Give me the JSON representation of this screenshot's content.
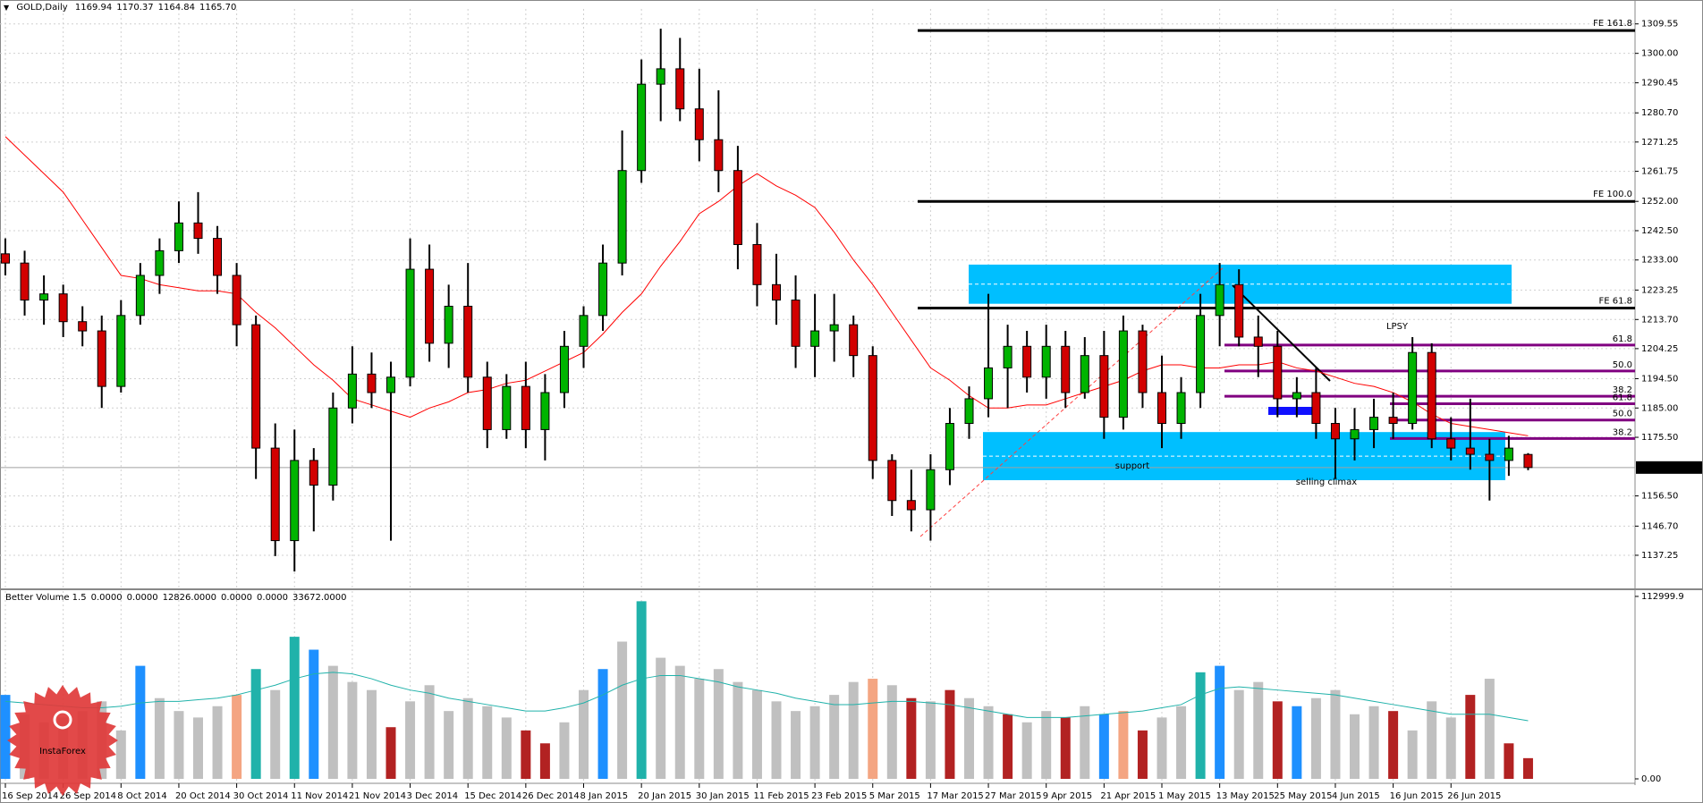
{
  "chart_data": [
    {
      "type": "candlestick",
      "title": "GOLD,Daily",
      "readout": [
        1169.94,
        1170.37,
        1164.84,
        {
          "value": 1165.7,
          "label": "1165.70"
        }
      ],
      "categories": [
        "16 Sep 2014",
        null,
        null,
        "26 Sep 2014",
        null,
        null,
        "8 Oct 2014",
        null,
        null,
        "20 Oct 2014",
        null,
        null,
        "30 Oct 2014",
        null,
        null,
        "11 Nov 2014",
        null,
        null,
        "21 Nov 2014",
        null,
        null,
        "3 Dec 2014",
        null,
        null,
        "15 Dec 2014",
        null,
        null,
        "26 Dec 2014",
        null,
        null,
        "8 Jan 2015",
        null,
        null,
        "20 Jan 2015",
        null,
        null,
        "30 Jan 2015",
        null,
        null,
        "11 Feb 2015",
        null,
        null,
        "23 Feb 2015",
        null,
        null,
        "5 Mar 2015",
        null,
        null,
        "17 Mar 2015",
        null,
        null,
        "27 Mar 2015",
        null,
        null,
        "9 Apr 2015",
        null,
        null,
        "21 Apr 2015",
        null,
        null,
        "1 May 2015",
        null,
        null,
        "13 May 2015",
        null,
        null,
        "25 May 2015",
        null,
        null,
        "4 Jun 2015",
        null,
        null,
        "16 Jun 2015",
        null,
        null,
        "26 Jun 2015",
        null,
        null,
        null,
        null
      ],
      "open": [
        1235,
        1232,
        1220,
        1222,
        1213,
        1210,
        1192,
        1215,
        1228,
        1236,
        1245,
        1240,
        1228,
        1212,
        1172,
        1142,
        1168,
        1160,
        1185,
        1196,
        1190,
        1195,
        1230,
        1206,
        1218,
        1195,
        1178,
        1192,
        1178,
        1190,
        1205,
        1215,
        1232,
        1262,
        1290,
        1295,
        1282,
        1272,
        1262,
        1238,
        1225,
        1220,
        1205,
        1210,
        1212,
        1202,
        1168,
        1155,
        1152,
        1165,
        1180,
        1188,
        1198,
        1205,
        1195,
        1205,
        1190,
        1202,
        1182,
        1210,
        1190,
        1180,
        1190,
        1215,
        1225,
        1208,
        1205,
        1188,
        1190,
        1180,
        1175,
        1178,
        1182,
        1180,
        1203,
        1175,
        1172,
        1170,
        1168,
        1169.94
      ],
      "high": [
        1240,
        1236,
        1228,
        1225,
        1218,
        1215,
        1220,
        1232,
        1240,
        1252,
        1255,
        1244,
        1232,
        1215,
        1180,
        1178,
        1172,
        1190,
        1205,
        1203,
        1200,
        1240,
        1238,
        1225,
        1232,
        1200,
        1196,
        1200,
        1196,
        1210,
        1218,
        1238,
        1275,
        1298,
        1308,
        1305,
        1295,
        1288,
        1270,
        1245,
        1235,
        1228,
        1222,
        1222,
        1215,
        1205,
        1170,
        1165,
        1170,
        1185,
        1192,
        1222,
        1212,
        1210,
        1212,
        1210,
        1208,
        1210,
        1215,
        1212,
        1202,
        1195,
        1222,
        1232,
        1230,
        1215,
        1210,
        1195,
        1198,
        1185,
        1185,
        1188,
        1190,
        1208,
        1206,
        1182,
        1188,
        1175,
        1176,
        1170.37
      ],
      "low": [
        1228,
        1215,
        1212,
        1208,
        1205,
        1185,
        1190,
        1212,
        1222,
        1232,
        1235,
        1222,
        1205,
        1162,
        1137,
        1132,
        1145,
        1155,
        1180,
        1185,
        1142,
        1192,
        1200,
        1198,
        1190,
        1172,
        1175,
        1172,
        1168,
        1185,
        1198,
        1210,
        1228,
        1258,
        1278,
        1278,
        1265,
        1255,
        1230,
        1218,
        1212,
        1198,
        1195,
        1200,
        1195,
        1162,
        1150,
        1145,
        1142,
        1160,
        1175,
        1182,
        1185,
        1190,
        1188,
        1185,
        1188,
        1175,
        1178,
        1185,
        1172,
        1175,
        1185,
        1205,
        1205,
        1195,
        1182,
        1182,
        1175,
        1162,
        1168,
        1172,
        1175,
        1178,
        1172,
        1168,
        1165,
        1155,
        1163,
        1164.84
      ],
      "close": [
        1232,
        1220,
        1222,
        1213,
        1210,
        1192,
        1215,
        1228,
        1236,
        1245,
        1240,
        1228,
        1212,
        1172,
        1142,
        1168,
        1160,
        1185,
        1196,
        1190,
        1195,
        1230,
        1206,
        1218,
        1195,
        1178,
        1192,
        1178,
        1190,
        1205,
        1215,
        1232,
        1262,
        1290,
        1295,
        1282,
        1272,
        1262,
        1238,
        1225,
        1220,
        1205,
        1210,
        1212,
        1202,
        1168,
        1155,
        1152,
        1165,
        1180,
        1188,
        1198,
        1205,
        1195,
        1205,
        1190,
        1202,
        1182,
        1210,
        1190,
        1180,
        1190,
        1215,
        1225,
        1208,
        1205,
        1188,
        1190,
        1180,
        1175,
        1178,
        1182,
        1180,
        1203,
        1175,
        1172,
        1170,
        1168,
        1172,
        1165.7
      ],
      "up_color": "#00b400",
      "down_color": "#d20000",
      "ma": {
        "color": "#ff0000",
        "values": [
          1273,
          1267,
          1261,
          1255,
          1246,
          1237,
          1228,
          1227,
          1225,
          1224,
          1223,
          1223,
          1222,
          1216,
          1211,
          1205,
          1199,
          1194,
          1188,
          1186,
          1184,
          1182,
          1185,
          1187,
          1190,
          1191,
          1193,
          1194,
          1197,
          1200,
          1203,
          1209,
          1216,
          1222,
          1231,
          1239,
          1248,
          1252,
          1257,
          1261,
          1257,
          1254,
          1250,
          1242,
          1233,
          1225,
          1216,
          1207,
          1198,
          1194,
          1189,
          1185,
          1185,
          1186,
          1186,
          1188,
          1190,
          1192,
          1194,
          1197,
          1199,
          1199,
          1198,
          1198,
          1199,
          1199,
          1200,
          1198,
          1197,
          1195,
          1193,
          1192,
          1190,
          1187,
          1183,
          1180,
          1179,
          1178,
          1177,
          1176
        ]
      },
      "ylim": [
        1126.8,
        1314.4
      ],
      "yticks": [
        1137.25,
        {
          "value": 1146.7,
          "label": "1146.70"
        },
        {
          "value": 1156.5,
          "label": "1156.50"
        },
        {
          "value": 1175.5,
          "label": "1175.50"
        },
        {
          "value": 1185,
          "label": "1185.00"
        },
        {
          "value": 1194.5,
          "label": "1194.50"
        },
        1204.25,
        {
          "value": 1213.7,
          "label": "1213.70"
        },
        1223.25,
        {
          "value": 1233,
          "label": "1233.00"
        },
        {
          "value": 1242.5,
          "label": "1242.50"
        },
        {
          "value": 1252,
          "label": "1252.00"
        },
        1261.75,
        1271.25,
        {
          "value": 1280.7,
          "label": "1280.70"
        },
        1290.45,
        {
          "value": 1300,
          "label": "1300.00"
        },
        1309.55
      ],
      "grid": true,
      "last_price": {
        "value": 1165.7,
        "label": "1165.70"
      },
      "fe_levels": [
        {
          "label": "FE 161.8",
          "value": 1307.4
        },
        {
          "label": "FE 100.0",
          "value": 1252.0
        },
        {
          "label": "FE 61.8",
          "value": 1217.4
        }
      ],
      "fib_color": "#800080",
      "fib_levels": [
        {
          "label": "61.8",
          "value": 1205.4
        },
        {
          "label": "50.0",
          "value": 1197.0
        },
        {
          "label": "38.2",
          "value": 1188.8
        },
        {
          "label": "61.8",
          "value": 1186.4
        },
        {
          "label": "50.0",
          "value": 1181.1
        },
        {
          "label": "38.2",
          "value": 1175.1
        }
      ],
      "zone_color": "#00bfff",
      "zones": [
        {
          "from": 1218.8,
          "to": 1231.5
        },
        {
          "from": 1161.6,
          "to": 1177.2
        }
      ],
      "annotations": [
        "LPSY",
        "selling climax",
        "support"
      ]
    },
    {
      "type": "bar",
      "title": "Better Volume 1.5",
      "readout": [
        {
          "value": 0,
          "label": "0.0000"
        },
        {
          "value": 0,
          "label": "0.0000"
        },
        {
          "value": 12826,
          "label": "12826.0000"
        },
        {
          "value": 0,
          "label": "0.0000"
        },
        {
          "value": 0,
          "label": "0.0000"
        },
        {
          "value": 33672,
          "label": "33672.0000"
        }
      ],
      "values": [
        52000,
        40000,
        35000,
        38000,
        42000,
        48000,
        30000,
        70000,
        50000,
        42000,
        38000,
        45000,
        52000,
        68000,
        55000,
        88000,
        80000,
        70000,
        60000,
        55000,
        32000,
        48000,
        58000,
        42000,
        50000,
        45000,
        38000,
        30000,
        22000,
        35000,
        55000,
        68000,
        85000,
        110000,
        75000,
        70000,
        62000,
        68000,
        60000,
        55000,
        48000,
        42000,
        45000,
        52000,
        60000,
        62000,
        58000,
        50000,
        48000,
        55000,
        50000,
        45000,
        40000,
        35000,
        42000,
        38000,
        45000,
        40000,
        42000,
        30000,
        38000,
        45000,
        66000,
        70000,
        55000,
        60000,
        48000,
        45000,
        50000,
        55000,
        40000,
        45000,
        42000,
        30000,
        48000,
        38000,
        52000,
        62000,
        22000,
        12826
      ],
      "colors": [
        "#1e90ff",
        "#c0c0c0",
        "#c0c0c0",
        "#c0c0c0",
        "#c0c0c0",
        "#c0c0c0",
        "#c0c0c0",
        "#1e90ff",
        "#c0c0c0",
        "#c0c0c0",
        "#c0c0c0",
        "#c0c0c0",
        "#f4a582",
        "#20b2aa",
        "#c0c0c0",
        "#20b2aa",
        "#1e90ff",
        "#c0c0c0",
        "#c0c0c0",
        "#c0c0c0",
        "#b22222",
        "#c0c0c0",
        "#c0c0c0",
        "#c0c0c0",
        "#c0c0c0",
        "#c0c0c0",
        "#c0c0c0",
        "#b22222",
        "#b22222",
        "#c0c0c0",
        "#c0c0c0",
        "#1e90ff",
        "#c0c0c0",
        "#20b2aa",
        "#c0c0c0",
        "#c0c0c0",
        "#c0c0c0",
        "#c0c0c0",
        "#c0c0c0",
        "#c0c0c0",
        "#c0c0c0",
        "#c0c0c0",
        "#c0c0c0",
        "#c0c0c0",
        "#c0c0c0",
        "#f4a582",
        "#c0c0c0",
        "#b22222",
        "#c0c0c0",
        "#b22222",
        "#c0c0c0",
        "#c0c0c0",
        "#b22222",
        "#c0c0c0",
        "#c0c0c0",
        "#b22222",
        "#c0c0c0",
        "#1e90ff",
        "#f4a582",
        "#b22222",
        "#c0c0c0",
        "#c0c0c0",
        "#20b2aa",
        "#1e90ff",
        "#c0c0c0",
        "#c0c0c0",
        "#b22222",
        "#1e90ff",
        "#c0c0c0",
        "#c0c0c0",
        "#c0c0c0",
        "#c0c0c0",
        "#b22222",
        "#c0c0c0",
        "#c0c0c0",
        "#c0c0c0",
        "#b22222",
        "#c0c0c0",
        "#b22222",
        "#b22222"
      ],
      "ma": {
        "color": "#20b2aa",
        "values": [
          48000,
          47000,
          46000,
          45000,
          44000,
          44000,
          45000,
          47000,
          48000,
          48000,
          49000,
          50000,
          52000,
          55000,
          58000,
          62000,
          65000,
          66000,
          65000,
          62000,
          58000,
          55000,
          53000,
          50000,
          48000,
          46000,
          44000,
          42000,
          42000,
          44000,
          47000,
          52000,
          58000,
          62000,
          64000,
          64000,
          62000,
          60000,
          57000,
          55000,
          53000,
          50000,
          48000,
          46000,
          46000,
          47000,
          48000,
          48000,
          47000,
          46000,
          44000,
          42000,
          40000,
          38000,
          38000,
          38000,
          39000,
          40000,
          41000,
          42000,
          44000,
          46000,
          52000,
          56000,
          57000,
          56000,
          55000,
          54000,
          53000,
          52000,
          50000,
          48000,
          46000,
          44000,
          42000,
          40000,
          40000,
          40000,
          38000,
          36000
        ]
      },
      "ylim": [
        -1660,
        116300
      ],
      "yticks": [
        112999.9,
        {
          "value": 0,
          "label": "0.00"
        }
      ]
    }
  ],
  "watermark": "InstaForex"
}
